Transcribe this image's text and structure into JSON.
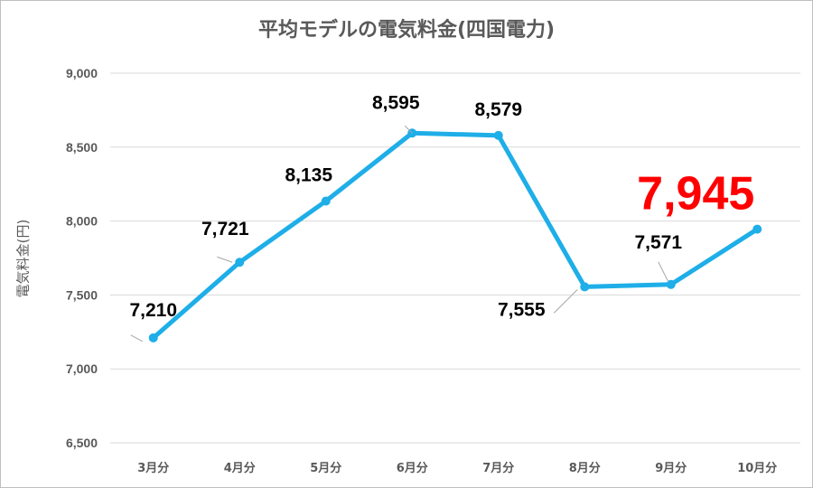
{
  "chart_data": {
    "type": "line",
    "title": "平均モデルの電気料金(四国電力)",
    "xlabel": "",
    "ylabel": "電気料金(円)",
    "categories": [
      "3月分",
      "4月分",
      "5月分",
      "6月分",
      "7月分",
      "8月分",
      "9月分",
      "10月分"
    ],
    "values": [
      7210,
      7721,
      8135,
      8595,
      8579,
      7555,
      7571,
      7945
    ],
    "value_labels": [
      "7,210",
      "7,721",
      "8,135",
      "8,595",
      "8,579",
      "7,555",
      "7,571",
      "7,945"
    ],
    "ylim": [
      6500,
      9000
    ],
    "yticks": [
      6500,
      7000,
      7500,
      8000,
      8500,
      9000
    ],
    "ytick_labels": [
      "6,500",
      "7,000",
      "7,500",
      "8,000",
      "8,500",
      "9,000"
    ],
    "grid": true,
    "legend": "none",
    "line_color": "#1EAEE8",
    "highlight": {
      "label": "7,945",
      "color": "#FF0000"
    }
  }
}
